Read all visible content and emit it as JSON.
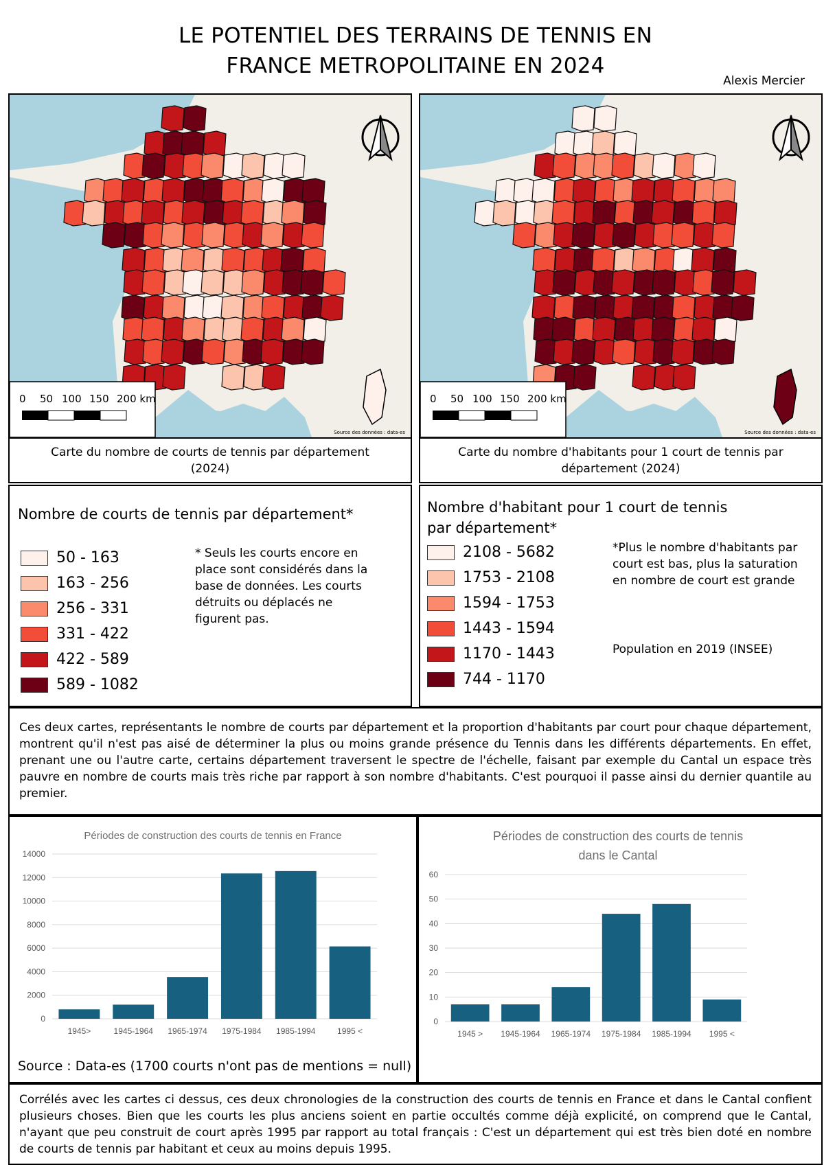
{
  "header": {
    "title_line1": "LE POTENTIEL DES TERRAINS DE TENNIS EN",
    "title_line2": "FRANCE METROPOLITAINE EN 2024",
    "author": "Alexis Mercier"
  },
  "map_left": {
    "scale_labels": [
      "0",
      "50",
      "100",
      "150",
      "200 km"
    ],
    "source": "Source des données : data-es",
    "caption": "Carte du nombre de courts de tennis par département (2024)"
  },
  "map_right": {
    "scale_labels": [
      "0",
      "50",
      "100",
      "150",
      "200 km"
    ],
    "source": "Source des données : data-es",
    "caption": "Carte du nombre d'habitants pour 1 court de tennis par département (2024)"
  },
  "legend_left": {
    "title": "Nombre de courts de tennis par département*",
    "classes": [
      {
        "label": "50 - 163",
        "color": "#fef0ea"
      },
      {
        "label": "163 - 256",
        "color": "#fcc4ad"
      },
      {
        "label": "256 - 331",
        "color": "#fb8a6c"
      },
      {
        "label": "331 - 422",
        "color": "#f14d38"
      },
      {
        "label": "422 - 589",
        "color": "#c2161b"
      },
      {
        "label": "589 - 1082",
        "color": "#6d0014"
      }
    ],
    "note": "* Seuls les courts encore en place sont considérés dans la base de données. Les courts détruits ou déplacés ne figurent pas."
  },
  "legend_right": {
    "title_line1": "Nombre d'habitant pour 1 court de tennis",
    "title_line2": "par département*",
    "classes": [
      {
        "label": "2108 - 5682",
        "color": "#fef0ea"
      },
      {
        "label": "1753 - 2108",
        "color": "#fcc4ad"
      },
      {
        "label": "1594 - 1753",
        "color": "#fb8a6c"
      },
      {
        "label": "1443 - 1594",
        "color": "#f14d38"
      },
      {
        "label": "1170 - 1443",
        "color": "#c2161b"
      },
      {
        "label": "744 - 1170",
        "color": "#6d0014"
      }
    ],
    "note": "*Plus le nombre d'habitants par court est bas, plus la saturation en nombre de court est grande",
    "population_note": "Population en 2019 (INSEE)"
  },
  "paragraph1": "Ces deux cartes, représentants le nombre de courts par département et la proportion d'habitants par court pour chaque département, montrent qu'il n'est pas aisé de déterminer la plus ou moins grande présence du Tennis dans les différents départements. En effet, prenant une ou l'autre carte, certains département traversent le spectre de l'échelle, faisant par exemple du Cantal un espace très pauvre en nombre de courts mais très riche par rapport à son nombre d'habitants. C'est pourquoi il passe ainsi du dernier quantile au premier.",
  "chart_source": "Source : Data-es (1700 courts n'ont pas de mentions = null)",
  "paragraph2": "Corrélés avec les cartes ci dessus, ces deux chronologies de la construction des courts de tennis en France et dans le Cantal confient plusieurs choses. Bien que les courts les plus anciens soient en partie occultés comme déjà explicité, on comprend que le Cantal, n'ayant que peu construit de court après 1995 par rapport au total français : C'est un département qui est très bien doté en nombre de courts de tennis par habitant et ceux au moins depuis 1995.",
  "colors": {
    "bar": "#17607f",
    "grid": "#d9d9d9",
    "map_water": "#aad3df",
    "map_land": "#f2efe9"
  },
  "chart_data": [
    {
      "type": "bar",
      "title": "Périodes de construction des courts de tennis en France",
      "categories": [
        "1945>",
        "1945-1964",
        "1965-1974",
        "1975-1984",
        "1985-1994",
        "1995 <"
      ],
      "values": [
        800,
        1200,
        3550,
        12350,
        12550,
        6150
      ],
      "xlabel": "",
      "ylabel": "",
      "ylim": [
        0,
        14000
      ],
      "yticks": [
        0,
        2000,
        4000,
        6000,
        8000,
        10000,
        12000,
        14000
      ],
      "grid": true,
      "legend": "none"
    },
    {
      "type": "bar",
      "title_line1": "Périodes de construction des courts de tennis",
      "title_line2": "dans le Cantal",
      "categories": [
        "1945 >",
        "1945-1964",
        "1965-1974",
        "1975-1984",
        "1985-1994",
        "1995 <"
      ],
      "values": [
        7,
        7,
        14,
        44,
        48,
        9
      ],
      "xlabel": "",
      "ylabel": "",
      "ylim": [
        0,
        60
      ],
      "yticks": [
        0,
        10,
        20,
        30,
        40,
        50,
        60
      ],
      "grid": true,
      "legend": "none"
    }
  ]
}
